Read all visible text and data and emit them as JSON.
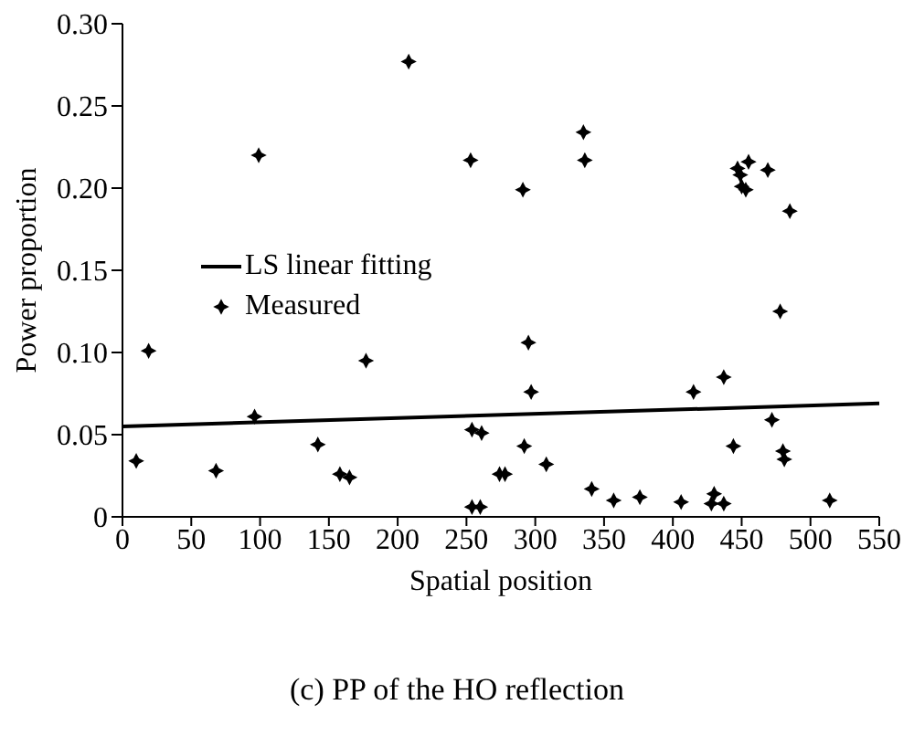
{
  "chart_data": {
    "type": "scatter",
    "xlabel": "Spatial position",
    "ylabel": "Power proportion",
    "annotations": [
      "(c) PP of the HO reflection"
    ],
    "xlim": [
      0,
      550
    ],
    "xticks": [
      0,
      50,
      100,
      150,
      200,
      250,
      300,
      350,
      400,
      450,
      500,
      550
    ],
    "ylim": [
      0,
      0.3
    ],
    "yticks": [
      0,
      0.05,
      {
        "value": 0.1,
        "label": "0.10"
      },
      0.15,
      {
        "value": 0.2,
        "label": "0.20"
      },
      0.25,
      {
        "value": 0.3,
        "label": "0.30"
      }
    ],
    "legend": "left",
    "grid": false,
    "series": [
      {
        "name": "LS linear fitting",
        "type": "line",
        "color": "#000000",
        "marker": "none",
        "line_style": "solid",
        "x": [
          0,
          550
        ],
        "values": [
          0.055,
          0.069
        ]
      },
      {
        "name": "Measured",
        "color": "#000000",
        "marker": "diamond",
        "x": [
          99,
          208,
          253,
          291,
          335,
          336,
          447,
          455,
          449,
          450,
          453,
          469,
          485,
          478,
          10,
          19,
          68,
          96,
          142,
          158,
          165,
          177,
          254,
          261,
          254,
          260,
          274,
          278,
          292,
          295,
          297,
          308,
          341,
          357,
          376,
          406,
          415,
          430,
          428,
          437,
          437,
          444,
          472,
          480,
          481,
          514
        ],
        "values": [
          0.22,
          0.277,
          0.217,
          0.199,
          0.234,
          0.217,
          0.212,
          0.216,
          0.208,
          0.201,
          0.199,
          0.211,
          0.186,
          0.125,
          0.034,
          0.101,
          0.028,
          0.061,
          0.044,
          0.026,
          0.024,
          0.095,
          0.053,
          0.051,
          0.006,
          0.006,
          0.026,
          0.026,
          0.043,
          0.106,
          0.076,
          0.032,
          0.017,
          0.01,
          0.012,
          0.009,
          0.076,
          0.014,
          0.008,
          0.008,
          0.085,
          0.043,
          0.059,
          0.04,
          0.035,
          0.01
        ]
      }
    ]
  }
}
